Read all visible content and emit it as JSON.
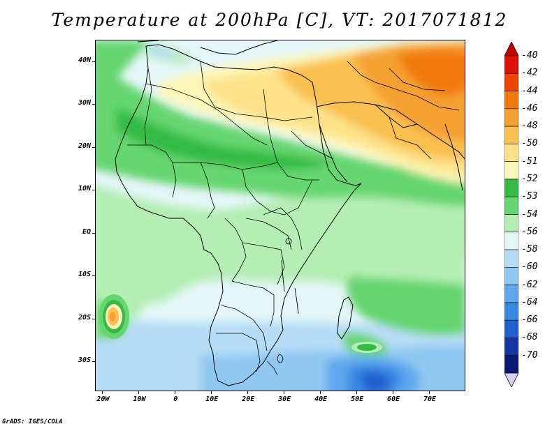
{
  "title": "Temperature at 200hPa [C], VT: 2017071812",
  "credit": "GrADS: IGES/COLA",
  "map": {
    "projection": "latlon",
    "lon_range": [
      -22,
      80
    ],
    "lat_range": [
      -37,
      45
    ],
    "lat_ticks": [
      {
        "value": 40,
        "label": "40N"
      },
      {
        "value": 30,
        "label": "30N"
      },
      {
        "value": 20,
        "label": "20N"
      },
      {
        "value": 10,
        "label": "10N"
      },
      {
        "value": 0,
        "label": "EQ"
      },
      {
        "value": -10,
        "label": "10S"
      },
      {
        "value": -20,
        "label": "20S"
      },
      {
        "value": -30,
        "label": "30S"
      }
    ],
    "lon_ticks": [
      {
        "value": -20,
        "label": "20W"
      },
      {
        "value": -10,
        "label": "10W"
      },
      {
        "value": 0,
        "label": "0"
      },
      {
        "value": 10,
        "label": "10E"
      },
      {
        "value": 20,
        "label": "20E"
      },
      {
        "value": 30,
        "label": "30E"
      },
      {
        "value": 40,
        "label": "40E"
      },
      {
        "value": 50,
        "label": "50E"
      },
      {
        "value": 60,
        "label": "60E"
      },
      {
        "value": 70,
        "label": "70E"
      }
    ]
  },
  "colorbar": {
    "levels": [
      {
        "label": "-40",
        "color": "#dd1100"
      },
      {
        "label": "-42",
        "color": "#ee4400"
      },
      {
        "label": "-44",
        "color": "#f27a0a"
      },
      {
        "label": "-46",
        "color": "#f5a030"
      },
      {
        "label": "-48",
        "color": "#fac050"
      },
      {
        "label": "-50",
        "color": "#fde28a"
      },
      {
        "label": "-51",
        "color": "#fcf6b8"
      },
      {
        "label": "-52",
        "color": "#33bb44"
      },
      {
        "label": "-53",
        "color": "#66d670"
      },
      {
        "label": "-54",
        "color": "#b4eeb4"
      },
      {
        "label": "-56",
        "color": "#e4f6f8"
      },
      {
        "label": "-58",
        "color": "#b7ddf6"
      },
      {
        "label": "-60",
        "color": "#90c8f2"
      },
      {
        "label": "-62",
        "color": "#5fa8ee"
      },
      {
        "label": "-64",
        "color": "#3b8ae2"
      },
      {
        "label": "-66",
        "color": "#2060d0"
      },
      {
        "label": "-68",
        "color": "#1236a8"
      },
      {
        "label": "-70",
        "color": "#0a1878"
      }
    ],
    "over_color": "#c80000",
    "under_color": "#d8d0f8"
  }
}
